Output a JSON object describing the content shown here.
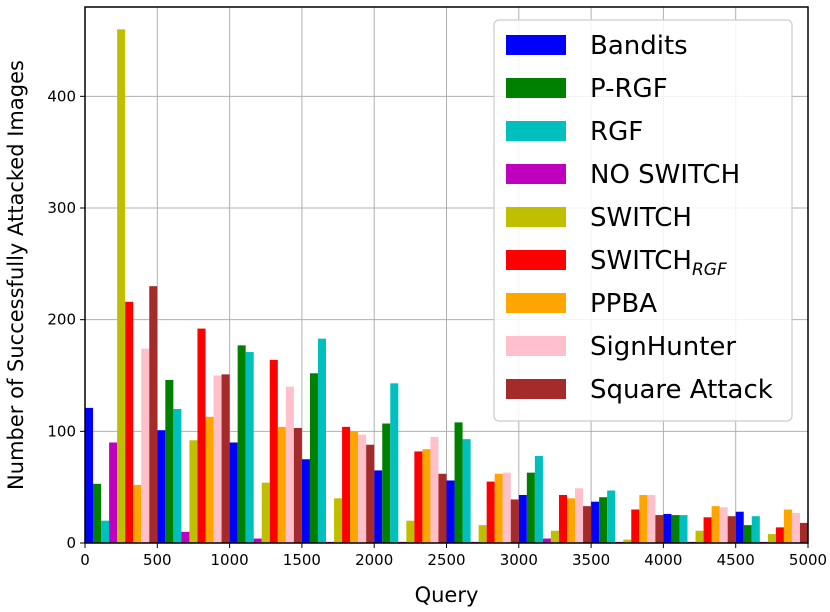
{
  "chart_data": {
    "type": "bar",
    "xlabel": "Query",
    "ylabel": "Number of Successfully Attacked Images",
    "xlim": [
      0,
      5000
    ],
    "ylim": [
      0,
      480
    ],
    "xticks": [
      0,
      500,
      1000,
      1500,
      2000,
      2500,
      3000,
      3500,
      4000,
      4500,
      5000
    ],
    "yticks": [
      0,
      100,
      200,
      300,
      400
    ],
    "grid": true,
    "legend_position": "top-right",
    "bin_starts": [
      0,
      500,
      1000,
      1500,
      2000,
      2500,
      3000,
      3500,
      4000,
      4500
    ],
    "bin_width": 500,
    "series": [
      {
        "name": "Bandits",
        "color": "#0000ff",
        "values": [
          121,
          101,
          90,
          75,
          65,
          56,
          43,
          37,
          26,
          28
        ]
      },
      {
        "name": "P-RGF",
        "color": "#008000",
        "values": [
          53,
          146,
          177,
          152,
          107,
          108,
          63,
          41,
          25,
          16
        ]
      },
      {
        "name": "RGF",
        "color": "#00bfbf",
        "values": [
          20,
          120,
          171,
          183,
          143,
          93,
          78,
          47,
          25,
          24
        ]
      },
      {
        "name": "NO SWITCH",
        "color": "#bf00bf",
        "values": [
          90,
          10,
          4,
          1,
          1,
          1,
          4,
          1,
          1,
          1
        ]
      },
      {
        "name": "SWITCH",
        "color": "#bfbf00",
        "values": [
          460,
          92,
          54,
          40,
          20,
          16,
          11,
          3,
          11,
          8
        ]
      },
      {
        "name": "SWITCH",
        "name_subscript": "RGF",
        "color": "#ff0000",
        "values": [
          216,
          192,
          164,
          104,
          82,
          55,
          43,
          30,
          23,
          14
        ]
      },
      {
        "name": "PPBA",
        "color": "#ffa500",
        "values": [
          52,
          113,
          104,
          100,
          84,
          62,
          40,
          43,
          33,
          30
        ]
      },
      {
        "name": "SignHunter",
        "color": "#ffc0cb",
        "values": [
          174,
          150,
          140,
          97,
          95,
          63,
          49,
          43,
          32,
          27
        ]
      },
      {
        "name": "Square Attack",
        "color": "#a52a2a",
        "values": [
          230,
          151,
          103,
          88,
          62,
          39,
          33,
          25,
          24,
          18
        ]
      }
    ]
  }
}
